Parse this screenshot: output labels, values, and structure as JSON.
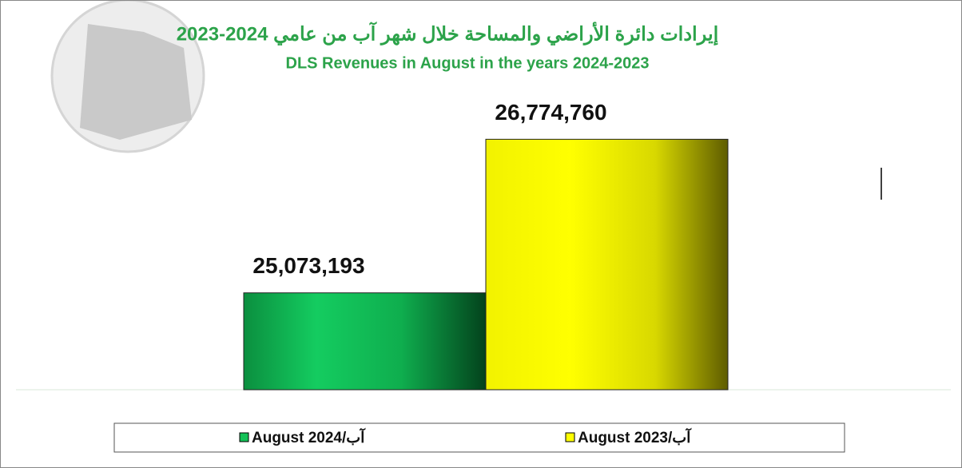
{
  "chart_data": {
    "type": "bar",
    "title": "إيرادات دائرة الأراضي والمساحة خلال شهر آب من عامي 2024-2023",
    "subtitle": "DLS Revenues in August in the years 2024-2023",
    "categories": [
      null
    ],
    "series": [
      {
        "name": "August 2024/آب",
        "color": "#13c157",
        "values": [
          25073193
        ],
        "value_labels": [
          "25,073,193"
        ]
      },
      {
        "name": "August 2023/آب",
        "color": "#ffff00",
        "values": [
          26774760
        ],
        "value_labels": [
          "26,774,760"
        ]
      }
    ],
    "ylim": [
      24000000,
      27300000
    ]
  }
}
